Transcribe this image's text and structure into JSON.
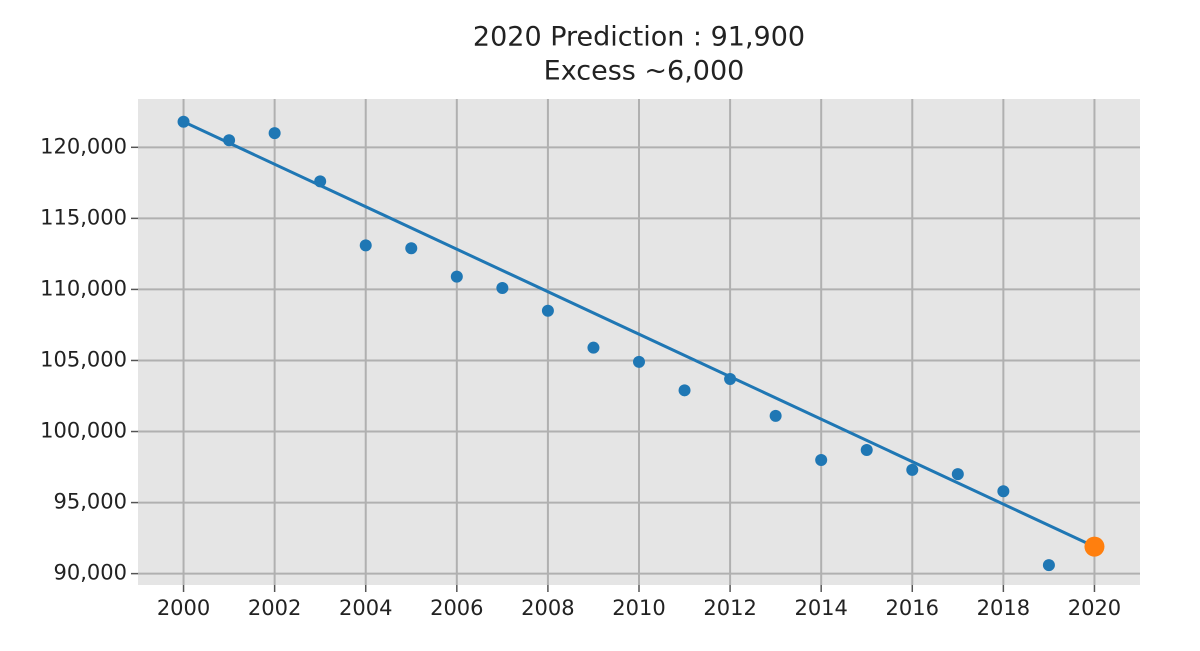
{
  "chart_data": {
    "type": "scatter",
    "title": "2020 Prediction : 91,900",
    "subtitle": "Excess ~6,000",
    "grid": true,
    "xlim": [
      1999,
      2021
    ],
    "xticks": [
      2000,
      2002,
      2004,
      2006,
      2008,
      2010,
      2012,
      2014,
      2016,
      2018,
      2020
    ],
    "ylim": [
      89200,
      123400
    ],
    "yticks": [
      {
        "value": 90000,
        "label": "90,000"
      },
      {
        "value": 95000,
        "label": "95,000"
      },
      {
        "value": 100000,
        "label": "100,000"
      },
      {
        "value": 105000,
        "label": "105,000"
      },
      {
        "value": 110000,
        "label": "110,000"
      },
      {
        "value": 115000,
        "label": "115,000"
      },
      {
        "value": 120000,
        "label": "120,000"
      }
    ],
    "series": [
      {
        "type": "scatter",
        "color": "#1f77b4",
        "x": [
          2000,
          2001,
          2002,
          2003,
          2004,
          2005,
          2006,
          2007,
          2008,
          2009,
          2010,
          2011,
          2012,
          2013,
          2014,
          2015,
          2016,
          2017,
          2018,
          2019
        ],
        "values": [
          121800,
          120500,
          121000,
          117600,
          113100,
          112900,
          110900,
          110100,
          108500,
          105900,
          104900,
          102900,
          103700,
          101100,
          98000,
          98700,
          97300,
          97000,
          95800,
          90600
        ]
      },
      {
        "type": "line",
        "color": "#1f77b4",
        "x": [
          2000,
          2020
        ],
        "values": [
          121800,
          91900
        ]
      },
      {
        "type": "scatter",
        "color": "#ff7f0e",
        "size": "large",
        "x": [
          2020
        ],
        "values": [
          91900
        ]
      }
    ]
  }
}
